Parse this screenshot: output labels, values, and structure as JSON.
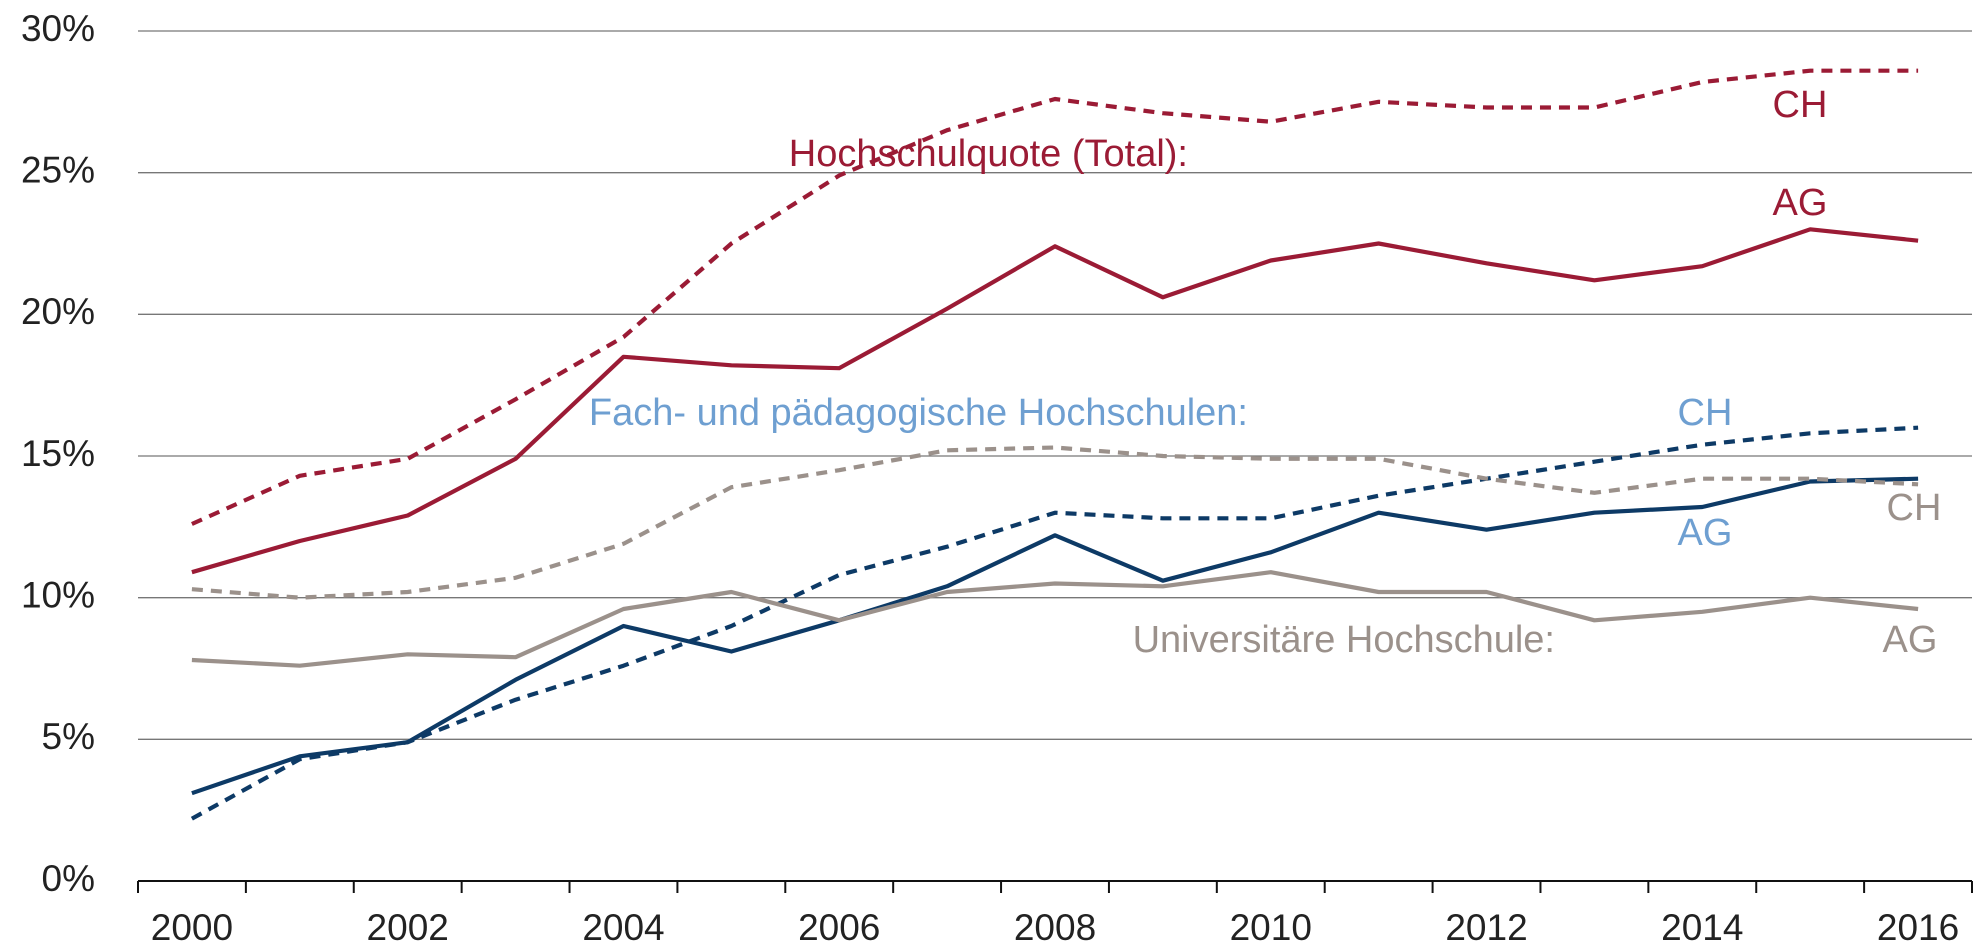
{
  "chart_data": {
    "type": "line",
    "categories": [
      2000,
      null,
      2002,
      null,
      2004,
      null,
      2006,
      null,
      2008,
      null,
      2010,
      null,
      2012,
      null,
      2014,
      null,
      2016
    ],
    "ylim": [
      0,
      30
    ],
    "yticks": [
      {
        "value": 0,
        "label": "0%"
      },
      {
        "value": 5,
        "label": "5%"
      },
      {
        "value": 10,
        "label": "10%"
      },
      {
        "value": 15,
        "label": "15%"
      },
      {
        "value": 20,
        "label": "20%"
      },
      {
        "value": 25,
        "label": "25%"
      },
      {
        "value": 30,
        "label": "30%"
      }
    ],
    "grid": true,
    "groups": [
      {
        "label": "Hochschulquote (Total):",
        "color": "#9b1b35",
        "series": [
          {
            "name": "CH",
            "dashed": true,
            "values": [
              12.6,
              14.3,
              14.9,
              17.0,
              19.2,
              22.5,
              24.9,
              26.5,
              27.6,
              27.1,
              26.8,
              27.5,
              27.3,
              27.3,
              28.2,
              28.6,
              28.6
            ]
          },
          {
            "name": "AG",
            "dashed": false,
            "values": [
              10.9,
              12.0,
              12.9,
              14.9,
              18.5,
              18.2,
              18.1,
              20.2,
              22.4,
              20.6,
              21.9,
              22.5,
              21.8,
              21.2,
              21.7,
              23.0,
              22.6
            ]
          }
        ]
      },
      {
        "label": "Fach- und pädagogische Hochschulen:",
        "color": "#6e9fd1",
        "line_color": "#0d3a66",
        "series": [
          {
            "name": "CH",
            "dashed": true,
            "values": [
              2.2,
              4.3,
              4.9,
              6.4,
              7.6,
              9.0,
              10.8,
              11.8,
              13.0,
              12.8,
              12.8,
              13.6,
              14.2,
              14.8,
              15.4,
              15.8,
              16.0
            ]
          },
          {
            "name": "AG",
            "dashed": false,
            "values": [
              3.1,
              4.4,
              4.9,
              7.1,
              9.0,
              8.1,
              9.2,
              10.4,
              12.2,
              10.6,
              11.6,
              13.0,
              12.4,
              13.0,
              13.2,
              14.1,
              14.2
            ]
          }
        ]
      },
      {
        "label": "Universitäre Hochschule:",
        "color": "#9b918b",
        "series": [
          {
            "name": "CH",
            "dashed": true,
            "values": [
              10.3,
              10.0,
              10.2,
              10.7,
              11.9,
              13.9,
              14.5,
              15.2,
              15.3,
              15.0,
              14.9,
              14.9,
              14.2,
              13.7,
              14.2,
              14.2,
              14.0
            ]
          },
          {
            "name": "AG",
            "dashed": false,
            "values": [
              7.8,
              7.6,
              8.0,
              7.9,
              9.6,
              10.2,
              9.2,
              10.2,
              10.5,
              10.4,
              10.9,
              10.2,
              10.2,
              9.2,
              9.5,
              10.0,
              9.6
            ]
          }
        ]
      }
    ]
  }
}
